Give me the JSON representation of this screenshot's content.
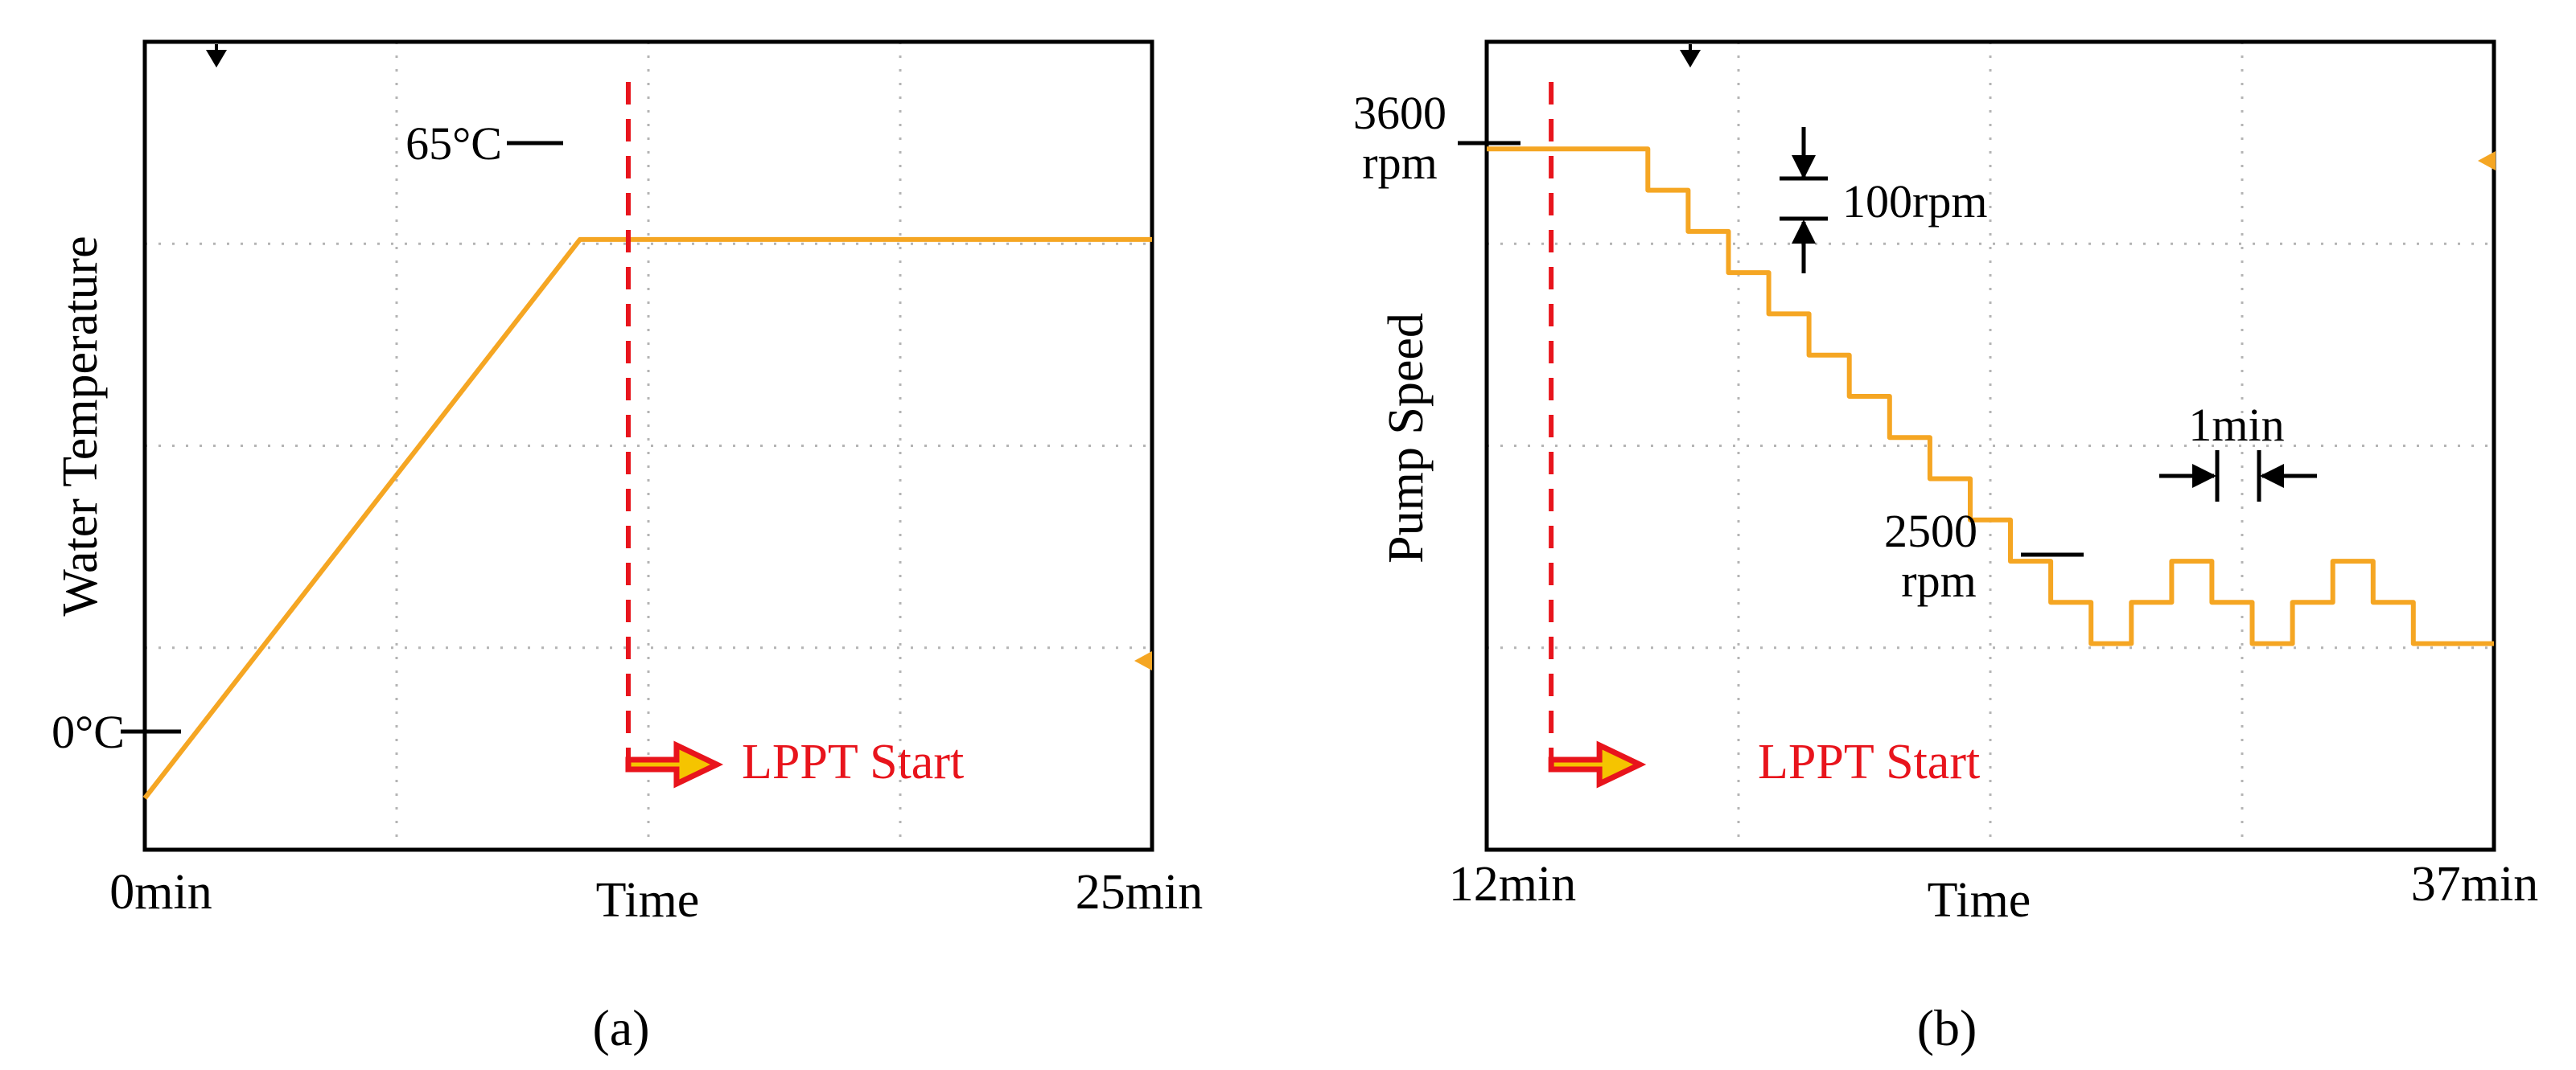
{
  "chart_data": [
    {
      "type": "line",
      "panel_label": "(a)",
      "ylabel": "Water Temperature",
      "xlabel": "Time",
      "x_start_label": "0min",
      "x_end_label": "25min",
      "xlim": [
        0,
        25
      ],
      "ylim": [
        -6,
        88
      ],
      "grid": true,
      "series": [
        {
          "name": "Water Temperature",
          "color": "#f5a623",
          "x": [
            0,
            10.8,
            25
          ],
          "y": [
            0,
            65,
            65
          ]
        }
      ],
      "start_marker_time": 12,
      "annotations": {
        "top_level": "65°C",
        "bottom_level": "0°C",
        "start": "LPPT Start"
      }
    },
    {
      "type": "line",
      "panel_label": "(b)",
      "ylabel": "Pump Speed",
      "xlabel": "Time",
      "x_start_label": "12min",
      "x_end_label": "37min",
      "xlim": [
        12,
        37
      ],
      "ylim": [
        1900,
        3860
      ],
      "grid": true,
      "series": [
        {
          "name": "Pump Speed",
          "color": "#f5a623",
          "x": [
            12,
            15,
            16,
            17,
            18,
            19,
            20,
            21,
            22,
            23,
            24,
            25,
            26,
            27,
            28,
            29,
            30,
            31,
            32,
            33,
            34,
            35,
            36,
            37
          ],
          "y": [
            3600,
            3600,
            3500,
            3400,
            3300,
            3200,
            3100,
            3000,
            2900,
            2800,
            2700,
            2600,
            2500,
            2400,
            2500,
            2600,
            2500,
            2400,
            2500,
            2600,
            2500,
            2400,
            2400,
            2400
          ]
        }
      ],
      "start_marker_time": 13.6,
      "annotations": {
        "top_level_value": "3600",
        "top_level_unit": "rpm",
        "bottom_level_value": "2500",
        "bottom_level_unit": "rpm",
        "step_size": "100rpm",
        "step_time": "1min",
        "start": "LPPT Start"
      }
    }
  ],
  "colors": {
    "trace": "#f5a623",
    "marker": "#e8141c",
    "grid": "#b4b4b4",
    "arrow_fill": "#f5c400"
  }
}
